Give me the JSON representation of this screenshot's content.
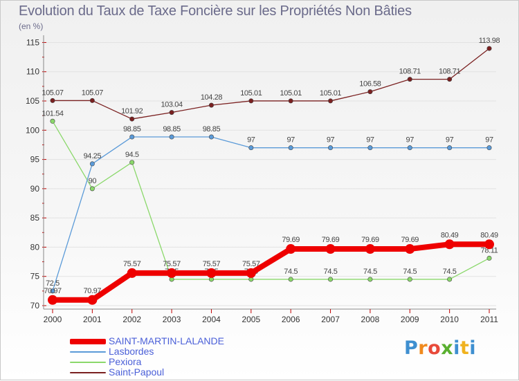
{
  "chart_data": {
    "type": "line",
    "title": "Evolution du Taux de Taxe Foncière sur les Propriétés Non Bâties",
    "unit_label": "(en %)",
    "xlabel": "",
    "ylabel": "(en %)",
    "ylim": [
      70,
      116
    ],
    "yticks": [
      70,
      75,
      80,
      85,
      90,
      95,
      100,
      105,
      110,
      115
    ],
    "categories": [
      "2000",
      "2001",
      "2002",
      "2003",
      "2004",
      "2005",
      "2006",
      "2007",
      "2008",
      "2009",
      "2010",
      "2011"
    ],
    "series": [
      {
        "name": "Saint-Papoul",
        "color": "#7a2020",
        "values": [
          105.07,
          105.07,
          101.92,
          103.04,
          104.28,
          105.01,
          105.01,
          105.01,
          106.58,
          108.71,
          108.71,
          113.98
        ],
        "labels": [
          "105.07",
          "105.07",
          "101.92",
          "103.04",
          "104.28",
          "105.01",
          "105.01",
          "105.01",
          "106.58",
          "108.71",
          "108.71",
          "113.98"
        ]
      },
      {
        "name": "Pexiora",
        "color": "#8ad86a",
        "values": [
          101.54,
          90,
          94.5,
          74.5,
          74.5,
          74.5,
          74.5,
          74.5,
          74.5,
          74.5,
          74.5,
          78.11
        ],
        "labels": [
          "101.54",
          "90",
          "94.5",
          "74.5",
          "74.5",
          "74.5",
          "74.5",
          "74.5",
          "74.5",
          "74.5",
          "74.5",
          "78.11"
        ]
      },
      {
        "name": "Lasbordes",
        "color": "#5a9ad8",
        "values": [
          72.5,
          94.25,
          98.85,
          98.85,
          98.85,
          97,
          97,
          97,
          97,
          97,
          97,
          97
        ],
        "labels": [
          "72.5",
          "94.25",
          "98.85",
          "98.85",
          "98.85",
          "97",
          "97",
          "97",
          "97",
          "97",
          "97",
          "97"
        ]
      },
      {
        "name": "SAINT-MARTIN-LALANDE",
        "color": "#ee0000",
        "values": [
          70.97,
          70.97,
          75.57,
          75.57,
          75.57,
          75.57,
          79.69,
          79.69,
          79.69,
          79.69,
          80.49,
          80.49
        ],
        "labels": [
          "70.97",
          "70.97",
          "75.57",
          "75.57",
          "75.57",
          "75.57",
          "79.69",
          "79.69",
          "79.69",
          "79.69",
          "80.49",
          "80.49"
        ]
      }
    ],
    "legend": [
      "SAINT-MARTIN-LALANDE",
      "Lasbordes",
      "Pexiora",
      "Saint-Papoul"
    ],
    "legend_position": "bottom-left"
  },
  "logo": {
    "parts": [
      "P",
      "r",
      "o",
      "x",
      "i",
      "t",
      "i"
    ]
  }
}
